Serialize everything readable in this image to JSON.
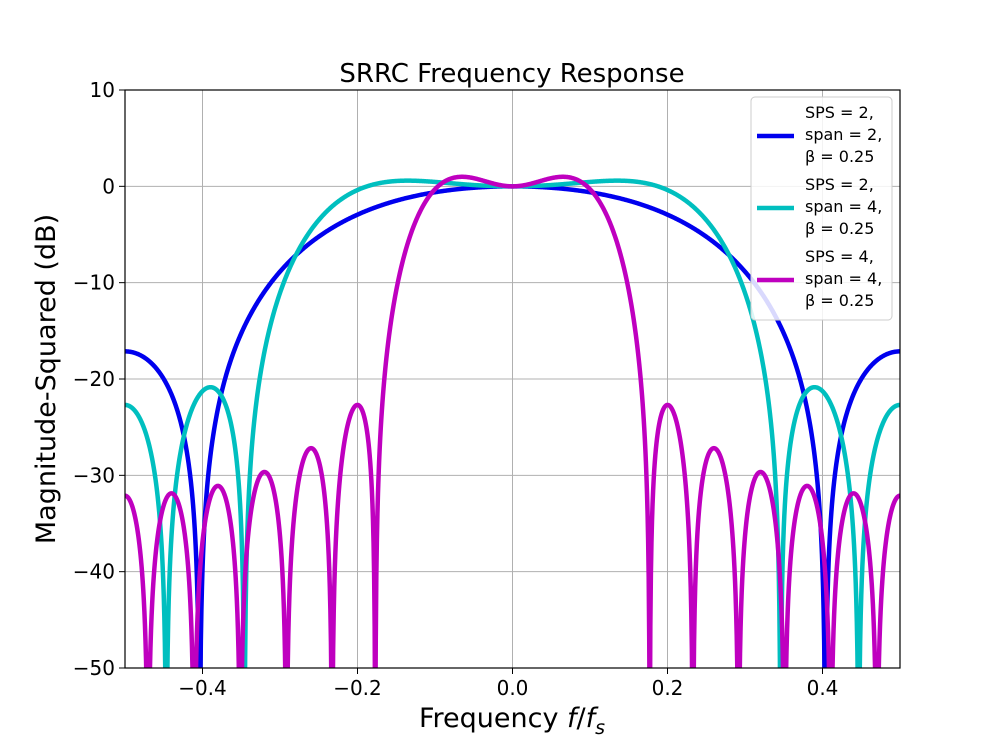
{
  "chart_data": {
    "type": "line",
    "title": "SRRC Frequency Response",
    "xlabel": {
      "main": "Frequency ",
      "var1": "f",
      "slash": "/",
      "var2": "f",
      "sub": "s"
    },
    "ylabel": "Magnitude-Squared (dB)",
    "xlim": [
      -0.5,
      0.5
    ],
    "ylim": [
      -50,
      10
    ],
    "xticks": [
      -0.4,
      -0.2,
      0.0,
      0.2,
      0.4
    ],
    "xtick_labels": [
      "−0.4",
      "−0.2",
      "0.0",
      "0.2",
      "0.4"
    ],
    "yticks": [
      10,
      0,
      -10,
      -20,
      -30,
      -40,
      -50
    ],
    "ytick_labels": [
      "10",
      "0",
      "−10",
      "−20",
      "−30",
      "−40",
      "−50"
    ],
    "grid": true,
    "legend_position": "top-right",
    "series": [
      {
        "name": "SPS = 2, span = 2, β = 0.25",
        "legend_lines": [
          "SPS = 2,",
          "span = 2,",
          "β = 0.25"
        ],
        "color": "#0000ee",
        "sps": 2,
        "span": 2,
        "beta": 0.25
      },
      {
        "name": "SPS = 2, span = 4, β = 0.25",
        "legend_lines": [
          "SPS = 2,",
          "span = 4,",
          "β = 0.25"
        ],
        "color": "#00bfbf",
        "sps": 2,
        "span": 4,
        "beta": 0.25
      },
      {
        "name": "SPS = 4, span = 4, β = 0.25",
        "legend_lines": [
          "SPS = 4,",
          "span = 4,",
          "β = 0.25"
        ],
        "color": "#bf00bf",
        "sps": 4,
        "span": 4,
        "beta": 0.25
      }
    ]
  }
}
